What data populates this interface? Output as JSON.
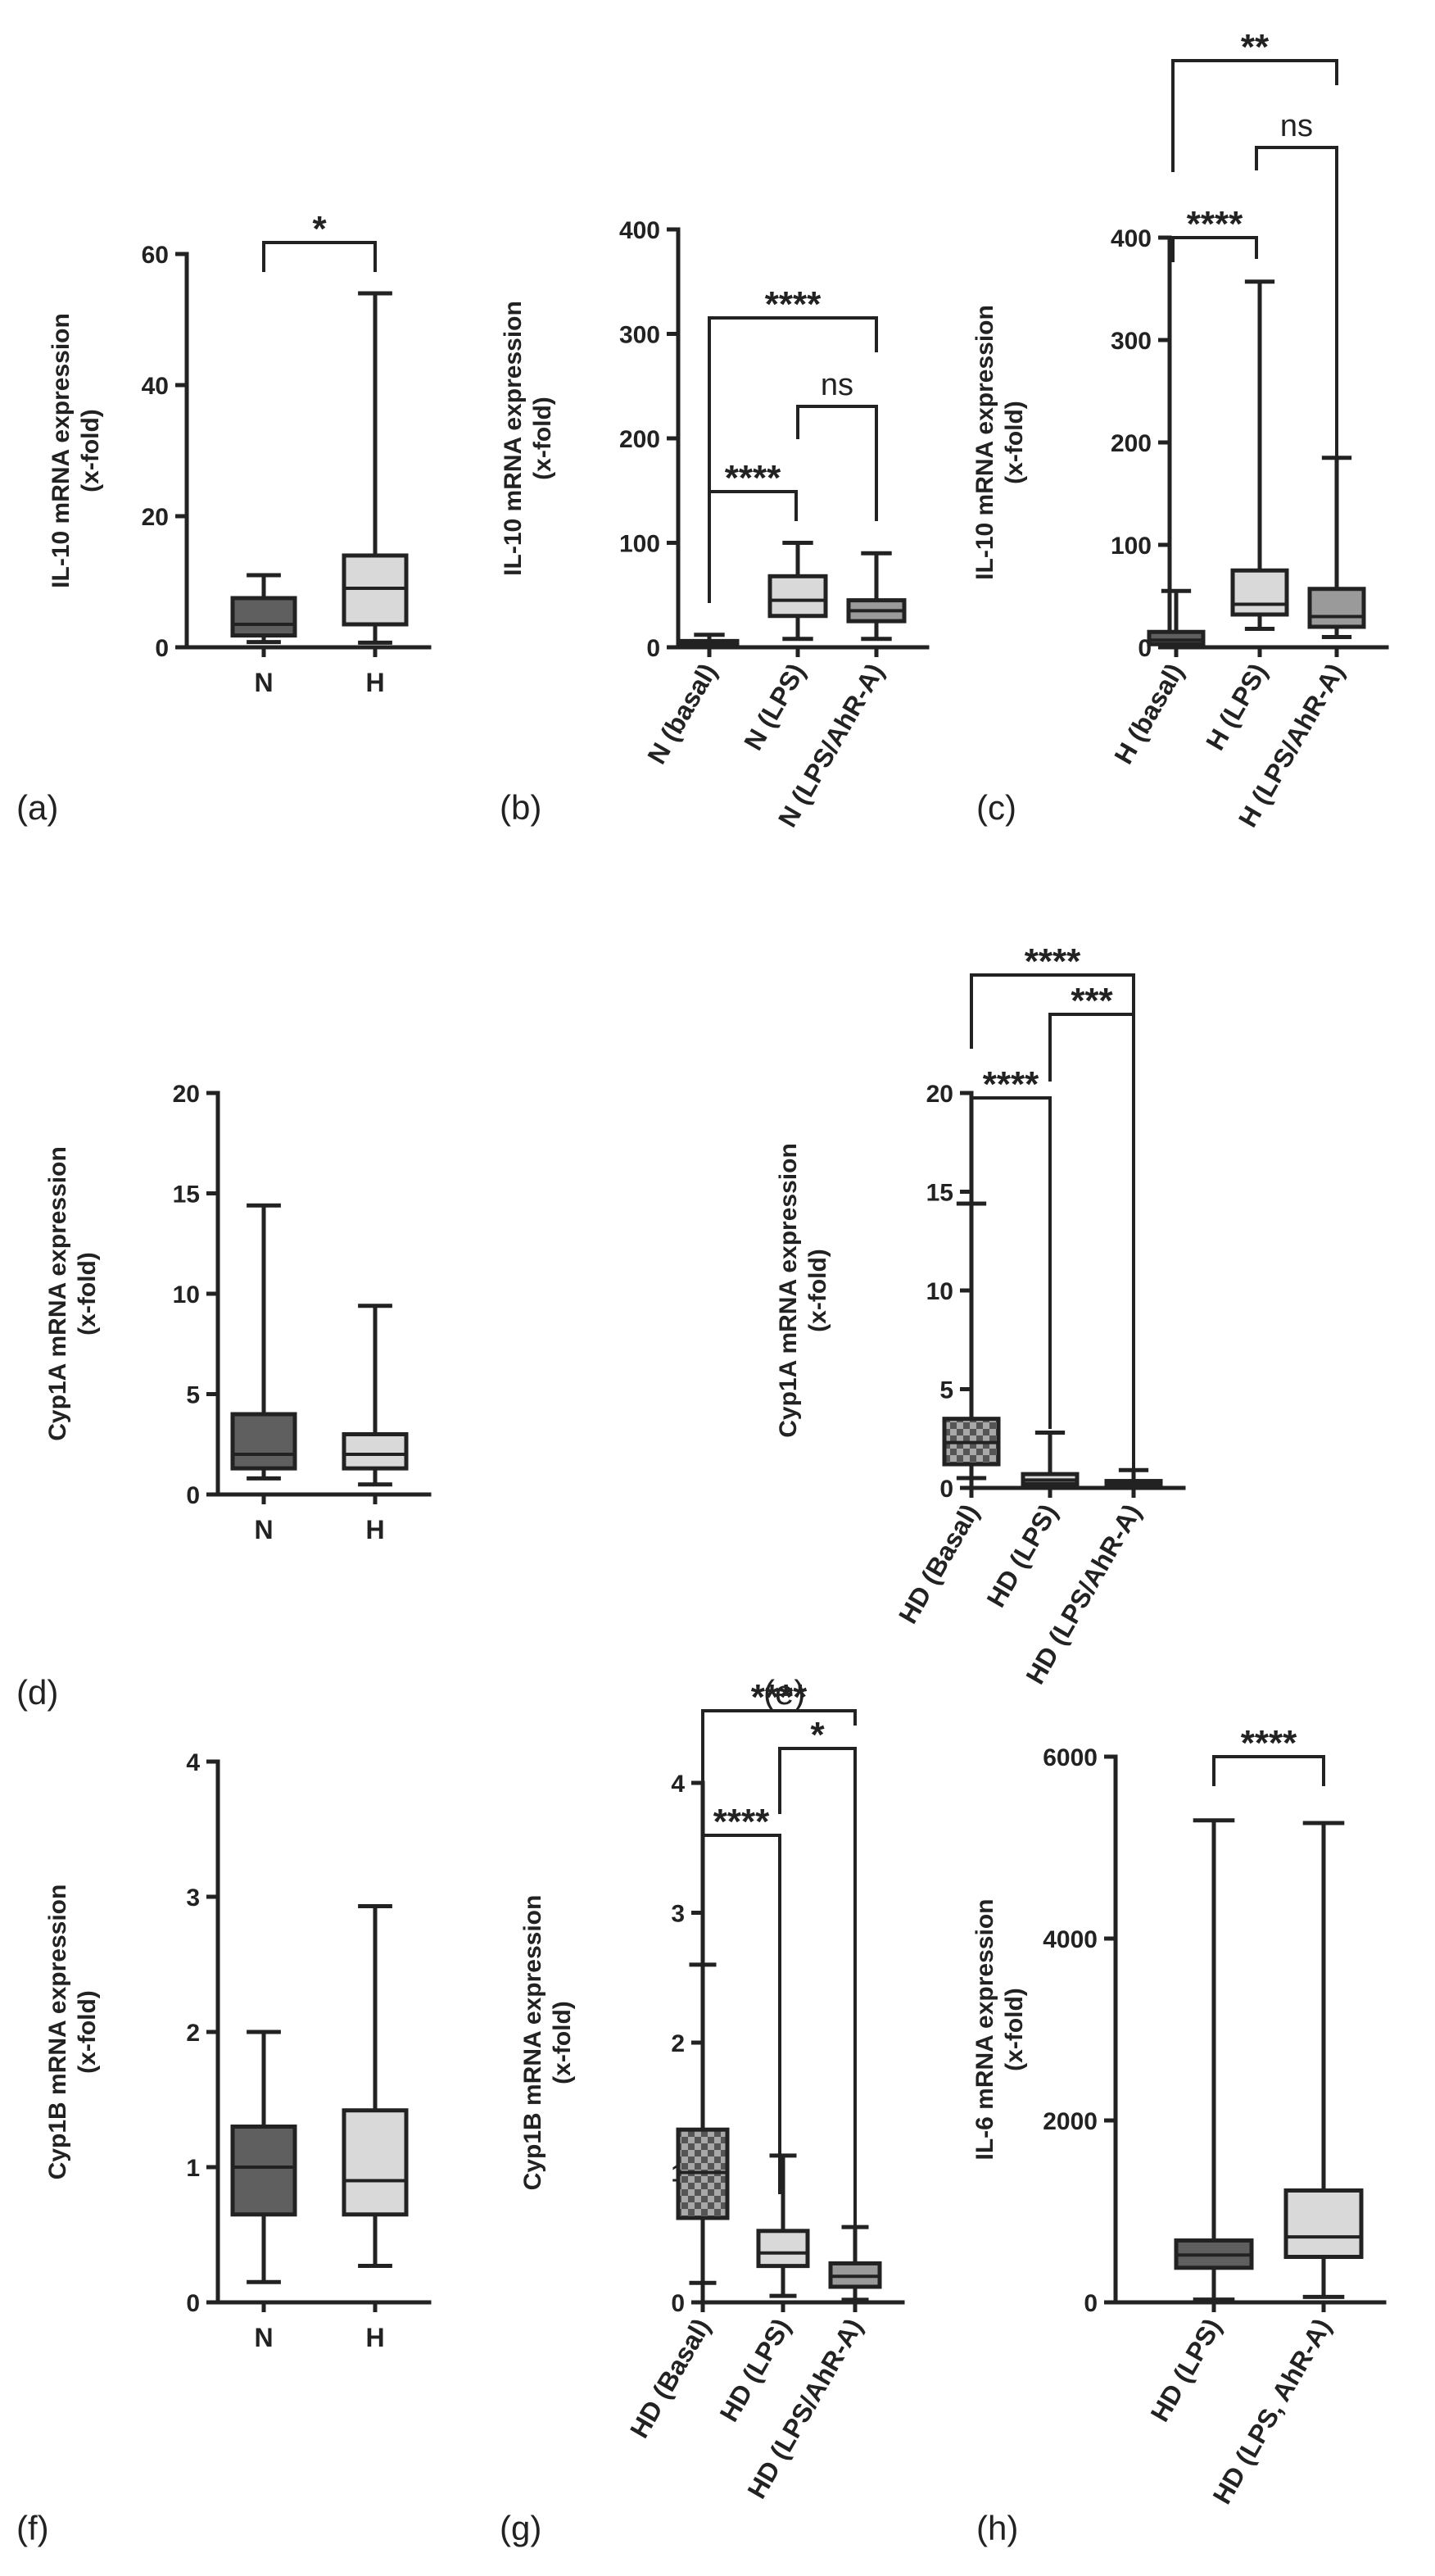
{
  "colors": {
    "dark": "#5f5f5f",
    "light": "#d9d9d9",
    "mid": "#9a9a9a",
    "ink": "#222222",
    "checker_a": "#555555",
    "checker_b": "#a8a8a8"
  },
  "chart_data": [
    {
      "id": "a",
      "type": "box",
      "panel_label": "(a)",
      "title": "",
      "ylabel": "IL-10 mRNA expression\n(x-fold)",
      "ylim": [
        0,
        60
      ],
      "yticks": [
        0,
        20,
        40,
        60
      ],
      "rotate_labels": false,
      "categories": [
        "N",
        "H"
      ],
      "boxes": [
        {
          "min": 0.8,
          "q1": 1.8,
          "median": 3.5,
          "q3": 7.5,
          "max": 11.0,
          "fill": "dark"
        },
        {
          "min": 0.7,
          "q1": 3.5,
          "median": 9.0,
          "q3": 14.0,
          "max": 54.0,
          "fill": "light"
        }
      ],
      "significance": [
        {
          "from": 0,
          "to": 1,
          "label": "*",
          "level": 0
        }
      ]
    },
    {
      "id": "b",
      "type": "box",
      "panel_label": "(b)",
      "title": "",
      "ylabel": "IL-10 mRNA expression\n(x-fold)",
      "ylim": [
        0,
        400
      ],
      "yticks": [
        0,
        100,
        200,
        300,
        400
      ],
      "rotate_labels": true,
      "categories": [
        "N (basal)",
        "N (LPS)",
        "N (LPS/AhR-A)"
      ],
      "boxes": [
        {
          "min": 1,
          "q1": 2,
          "median": 4,
          "q3": 6,
          "max": 12,
          "fill": "dark"
        },
        {
          "min": 8,
          "q1": 30,
          "median": 45,
          "q3": 68,
          "max": 100,
          "fill": "light"
        },
        {
          "min": 8,
          "q1": 25,
          "median": 35,
          "q3": 45,
          "max": 90,
          "fill": "mid"
        }
      ],
      "significance": [
        {
          "from": 0,
          "to": 1,
          "label": "****",
          "level": 0
        },
        {
          "from": 1,
          "to": 2,
          "label": "ns",
          "level": 1
        },
        {
          "from": 0,
          "to": 2,
          "label": "****",
          "level": 2
        }
      ]
    },
    {
      "id": "c",
      "type": "box",
      "panel_label": "(c)",
      "title": "",
      "ylabel": "IL-10 mRNA expression\n(x-fold)",
      "ylim": [
        0,
        400
      ],
      "yticks": [
        0,
        100,
        200,
        300,
        400
      ],
      "rotate_labels": true,
      "categories": [
        "H (basal)",
        "H (LPS)",
        "H (LPS/AhR-A)"
      ],
      "boxes": [
        {
          "min": 1,
          "q1": 3,
          "median": 7,
          "q3": 15,
          "max": 55,
          "fill": "dark"
        },
        {
          "min": 18,
          "q1": 32,
          "median": 42,
          "q3": 75,
          "max": 357,
          "fill": "light"
        },
        {
          "min": 10,
          "q1": 20,
          "median": 30,
          "q3": 57,
          "max": 185,
          "fill": "mid"
        }
      ],
      "significance": [
        {
          "from": 0,
          "to": 1,
          "label": "****",
          "level": 0
        },
        {
          "from": 1,
          "to": 2,
          "label": "ns",
          "level": 1
        },
        {
          "from": 0,
          "to": 2,
          "label": "**",
          "level": 2
        }
      ]
    },
    {
      "id": "d",
      "type": "box",
      "panel_label": "(d)",
      "title": "",
      "ylabel": "Cyp1A mRNA expression\n(x-fold)",
      "ylim": [
        0,
        20
      ],
      "yticks": [
        0,
        5,
        10,
        15,
        20
      ],
      "rotate_labels": false,
      "categories": [
        "N",
        "H"
      ],
      "boxes": [
        {
          "min": 0.8,
          "q1": 1.3,
          "median": 2.0,
          "q3": 4.0,
          "max": 14.4,
          "fill": "dark"
        },
        {
          "min": 0.5,
          "q1": 1.3,
          "median": 2.0,
          "q3": 3.0,
          "max": 9.4,
          "fill": "light"
        }
      ],
      "significance": []
    },
    {
      "id": "e",
      "type": "box",
      "panel_label": "(e)",
      "title": "",
      "ylabel": "Cyp1A mRNA expression\n(x-fold)",
      "ylim": [
        0,
        20
      ],
      "yticks": [
        0,
        5,
        10,
        15,
        20
      ],
      "rotate_labels": true,
      "categories": [
        "HD (Basal)",
        "HD (LPS)",
        "HD (LPS/AhR-A)"
      ],
      "boxes": [
        {
          "min": 0.5,
          "q1": 1.2,
          "median": 2.3,
          "q3": 3.5,
          "max": 14.4,
          "fill": "checker"
        },
        {
          "min": 0.05,
          "q1": 0.2,
          "median": 0.4,
          "q3": 0.7,
          "max": 2.8,
          "fill": "light"
        },
        {
          "min": 0.02,
          "q1": 0.1,
          "median": 0.2,
          "q3": 0.35,
          "max": 0.9,
          "fill": "mid"
        }
      ],
      "significance": [
        {
          "from": 0,
          "to": 1,
          "label": "****",
          "level": 0
        },
        {
          "from": 1,
          "to": 2,
          "label": "***",
          "level": 1
        },
        {
          "from": 0,
          "to": 2,
          "label": "****",
          "level": 2
        }
      ]
    },
    {
      "id": "f",
      "type": "box",
      "panel_label": "(f)",
      "title": "",
      "ylabel": "Cyp1B mRNA expression\n(x-fold)",
      "ylim": [
        0,
        4
      ],
      "yticks": [
        0,
        1,
        2,
        3,
        4
      ],
      "rotate_labels": false,
      "categories": [
        "N",
        "H"
      ],
      "boxes": [
        {
          "min": 0.15,
          "q1": 0.65,
          "median": 1.0,
          "q3": 1.3,
          "max": 2.0,
          "fill": "dark"
        },
        {
          "min": 0.27,
          "q1": 0.65,
          "median": 0.9,
          "q3": 1.42,
          "max": 2.93,
          "fill": "light"
        }
      ],
      "significance": []
    },
    {
      "id": "g",
      "type": "box",
      "panel_label": "(g)",
      "title": "",
      "ylabel": "Cyp1B mRNA expression\n(x-fold)",
      "ylim": [
        0,
        4
      ],
      "yticks": [
        0,
        1,
        2,
        3,
        4
      ],
      "rotate_labels": true,
      "categories": [
        "HD (Basal)",
        "HD (LPS)",
        "HD (LPS/AhR-A)"
      ],
      "boxes": [
        {
          "min": 0.15,
          "q1": 0.65,
          "median": 1.0,
          "q3": 1.33,
          "max": 2.6,
          "fill": "checker"
        },
        {
          "min": 0.05,
          "q1": 0.28,
          "median": 0.38,
          "q3": 0.55,
          "max": 1.13,
          "fill": "light"
        },
        {
          "min": 0.02,
          "q1": 0.12,
          "median": 0.2,
          "q3": 0.3,
          "max": 0.58,
          "fill": "mid"
        }
      ],
      "significance": [
        {
          "from": 0,
          "to": 1,
          "label": "****",
          "level": 0
        },
        {
          "from": 1,
          "to": 2,
          "label": "*",
          "level": 1
        },
        {
          "from": 0,
          "to": 2,
          "label": "****",
          "level": 2
        }
      ]
    },
    {
      "id": "h",
      "type": "box",
      "panel_label": "(h)",
      "title": "",
      "ylabel": "IL-6 mRNA expression\n(x-fold)",
      "ylim": [
        0,
        6000
      ],
      "yticks": [
        0,
        2000,
        4000,
        6000
      ],
      "rotate_labels": true,
      "categories": [
        "HD (LPS)",
        "HD (LPS, AhR-A)"
      ],
      "boxes": [
        {
          "min": 30,
          "q1": 380,
          "median": 520,
          "q3": 680,
          "max": 5300,
          "fill": "dark"
        },
        {
          "min": 60,
          "q1": 500,
          "median": 720,
          "q3": 1230,
          "max": 5270,
          "fill": "light"
        }
      ],
      "significance": [
        {
          "from": 0,
          "to": 1,
          "label": "****",
          "level": 0
        }
      ]
    }
  ]
}
